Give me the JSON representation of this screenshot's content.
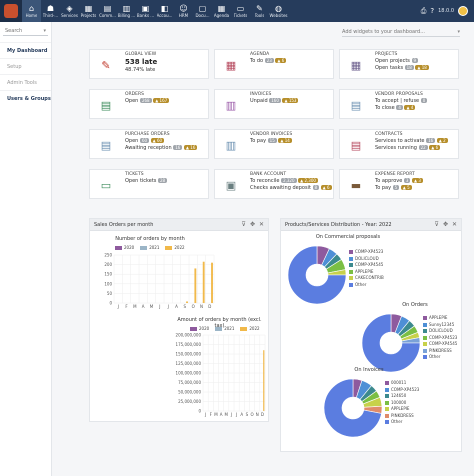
{
  "topbar": {
    "menu": [
      {
        "label": "Home",
        "icon": "home-icon",
        "glyph": "⌂",
        "active": true
      },
      {
        "label": "Third-...",
        "icon": "users-icon",
        "glyph": "☗"
      },
      {
        "label": "Services",
        "icon": "cube-icon",
        "glyph": "◈"
      },
      {
        "label": "Projects",
        "icon": "sitemap-icon",
        "glyph": "▦"
      },
      {
        "label": "Comm...",
        "icon": "file-icon",
        "glyph": "▤"
      },
      {
        "label": "Billing ...",
        "icon": "invoice-icon",
        "glyph": "▥"
      },
      {
        "label": "Banks ...",
        "icon": "bank-icon",
        "glyph": "▣"
      },
      {
        "label": "Accou...",
        "icon": "accounting-icon",
        "glyph": "◧"
      },
      {
        "label": "HRM",
        "icon": "hrm-icon",
        "glyph": "☺"
      },
      {
        "label": "Docu...",
        "icon": "document-icon",
        "glyph": "▢"
      },
      {
        "label": "Agenda",
        "icon": "calendar-icon",
        "glyph": "▦"
      },
      {
        "label": "Tickets",
        "icon": "ticket-icon",
        "glyph": "▭"
      },
      {
        "label": "Tools",
        "icon": "wrench-icon",
        "glyph": "✎"
      },
      {
        "label": "Websites",
        "icon": "globe-icon",
        "glyph": "◍"
      }
    ],
    "version": "18.0.0"
  },
  "sidebar": {
    "search_placeholder": "Search",
    "items": [
      {
        "label": "My Dashboard",
        "active": true
      },
      {
        "label": "Setup"
      },
      {
        "label": "Admin Tools"
      },
      {
        "label": "Users & Groups",
        "bold": true
      }
    ]
  },
  "filter": {
    "placeholder": "Add widgets to your dashboard..."
  },
  "boxes": [
    {
      "title": "GLOBAL VIEW",
      "icon": "thumbtack-icon",
      "glyph": "✎",
      "color": "#c0392b",
      "big": "538 late",
      "line2": "48.74% late"
    },
    {
      "title": "AGENDA",
      "icon": "calendar-icon",
      "glyph": "▦",
      "color": "#b5475c",
      "l1": "To do",
      "b1": "23",
      "b2": "▲ 6"
    },
    {
      "title": "PROJECTS",
      "icon": "sitemap-icon",
      "glyph": "▦",
      "color": "#6b5e8c",
      "l1": "Open projects",
      "b1": "9",
      "l2": "Open tasks",
      "b3": "18",
      "b4": "▲ 18"
    },
    {
      "title": "ORDERS",
      "icon": "file-icon",
      "glyph": "▤",
      "color": "#3d8c5c",
      "l1": "Open",
      "b1": "268",
      "b2": "▲ 167"
    },
    {
      "title": "INVOICES",
      "icon": "invoice-icon",
      "glyph": "▥",
      "color": "#9a5aa8",
      "l1": "Unpaid",
      "b1": "160",
      "b2": "▲ 153"
    },
    {
      "title": "VENDOR PROPOSALS",
      "icon": "proposal-icon",
      "glyph": "▤",
      "color": "#6a8fb0",
      "l1": "To accept | refuse",
      "b1": "0",
      "l2": "To close",
      "b3": "4",
      "b4": "▲ 4"
    },
    {
      "title": "PURCHASE ORDERS",
      "icon": "purchase-icon",
      "glyph": "▤",
      "color": "#6a8fb0",
      "l1": "Open",
      "b1": "60",
      "b2": "▲ 60",
      "l2": "Awaiting reception",
      "b3": "16",
      "b4": "▲ 16"
    },
    {
      "title": "VENDOR INVOICES",
      "icon": "vendor-invoice-icon",
      "glyph": "▥",
      "color": "#6a8fb0",
      "l1": "To pay",
      "b1": "15",
      "b2": "▲ 14"
    },
    {
      "title": "CONTRACTS",
      "icon": "contract-icon",
      "glyph": "▤",
      "color": "#b5475c",
      "l1": "Services to activate",
      "b1": "16",
      "b2": "▲ 2",
      "l2": "Services running",
      "b3": "22",
      "b4": "▲ 6"
    },
    {
      "title": "TICKETS",
      "icon": "ticket-icon",
      "glyph": "▭",
      "color": "#3d8c5c",
      "l1": "Open tickets",
      "b1": "28"
    },
    {
      "title": "BANK ACCOUNT",
      "icon": "bank-icon",
      "glyph": "▣",
      "color": "#6a7f80",
      "l1": "To reconcile",
      "b1": "2,320",
      "b2": "▲ 2,300",
      "l2": "Checks awaiting deposit",
      "b3": "8",
      "b4": "▲ 6"
    },
    {
      "title": "EXPENSE REPORT",
      "icon": "wallet-icon",
      "glyph": "▬",
      "color": "#7a5a3a",
      "l1": "To approve",
      "b1": "3",
      "b2": "▲ 3",
      "l2": "To pay",
      "b3": "5",
      "b4": "▲ 5"
    }
  ],
  "panel_left": {
    "title": "Sales Orders per month",
    "chart1_title": "Number of orders by month",
    "chart2_title": "Amount of orders by month (excl. tax)"
  },
  "panel_right": {
    "title": "Products/Services Distribution - Year: 2022",
    "pie1_title": "On Commercial proposals",
    "pie2_title": "On Orders",
    "pie3_title": "On Invoices"
  },
  "colors": {
    "y2020": "#8e5a9e",
    "y2021": "#9bb5c7",
    "y2022": "#f1b94a"
  },
  "chart_data": [
    {
      "type": "bar",
      "title": "Number of orders by month",
      "categories": [
        "J",
        "F",
        "M",
        "A",
        "M",
        "J",
        "J",
        "A",
        "S",
        "O",
        "N",
        "D"
      ],
      "series": [
        {
          "name": "2020",
          "values": [
            0,
            0,
            0,
            0,
            0,
            0,
            0,
            0,
            0,
            0,
            0,
            0
          ]
        },
        {
          "name": "2021",
          "values": [
            0,
            0,
            0,
            0,
            0,
            0,
            0,
            0,
            0,
            0,
            0,
            0
          ]
        },
        {
          "name": "2022",
          "values": [
            0,
            0,
            0,
            0,
            0,
            0,
            0,
            0,
            8,
            180,
            215,
            210
          ]
        }
      ],
      "yticks": [
        "0",
        "50",
        "100",
        "150",
        "200",
        "250"
      ],
      "ylim": [
        0,
        250
      ]
    },
    {
      "type": "bar",
      "title": "Amount of orders by month (excl. tax)",
      "categories": [
        "J",
        "F",
        "M",
        "A",
        "M",
        "J",
        "J",
        "A",
        "S",
        "O",
        "N",
        "D"
      ],
      "series": [
        {
          "name": "2020",
          "values": [
            0,
            0,
            0,
            0,
            0,
            0,
            0,
            0,
            0,
            0,
            0,
            0
          ]
        },
        {
          "name": "2021",
          "values": [
            0,
            0,
            0,
            0,
            0,
            0,
            0,
            0,
            0,
            0,
            0,
            0
          ]
        },
        {
          "name": "2022",
          "values": [
            0,
            0,
            0,
            0,
            0,
            0,
            0,
            0,
            0,
            0,
            0,
            160000000
          ]
        }
      ],
      "yticks": [
        "0",
        "25,000,000",
        "50,000,000",
        "75,000,000",
        "100,000,000",
        "125,000,000",
        "150,000,000",
        "175,000,000",
        "200,000,000"
      ],
      "ylim": [
        0,
        200000000
      ]
    },
    {
      "type": "pie",
      "title": "On Commercial proposals",
      "labels": [
        "COMP-XP4523",
        "DOLICLOUD",
        "COMP-XP4545",
        "APPLEPIE",
        "CAKECONTRIB",
        "Other"
      ],
      "values": [
        7,
        5,
        4,
        6,
        3,
        75
      ],
      "colors": [
        "#8e5a9e",
        "#4e8fd6",
        "#3c8a8e",
        "#7bbf44",
        "#c7d14a",
        "#5b7de0"
      ]
    },
    {
      "type": "pie",
      "title": "On Orders",
      "labels": [
        "APPLEPIE",
        "Sunny12345",
        "DOLICLOUD",
        "COMP-XP4523",
        "COMP-XP4545",
        "PINKDRESS",
        "Other"
      ],
      "values": [
        6,
        5,
        4,
        4,
        3,
        3,
        75
      ],
      "colors": [
        "#8e5a9e",
        "#4e8fd6",
        "#3c8a8e",
        "#7bbf44",
        "#c7d14a",
        "#7aa2d8",
        "#5b7de0"
      ]
    },
    {
      "type": "pie",
      "title": "On Invoices",
      "labels": [
        "000011",
        "COMP-XP4523",
        "124650",
        "100000",
        "APPLEPIE",
        "PINKDRESS",
        "Other"
      ],
      "values": [
        5,
        6,
        4,
        4,
        5,
        4,
        72
      ],
      "colors": [
        "#8e5a9e",
        "#4e8fd6",
        "#3c8a8e",
        "#7bbf44",
        "#c7d14a",
        "#e08b6a",
        "#5b7de0"
      ]
    }
  ]
}
